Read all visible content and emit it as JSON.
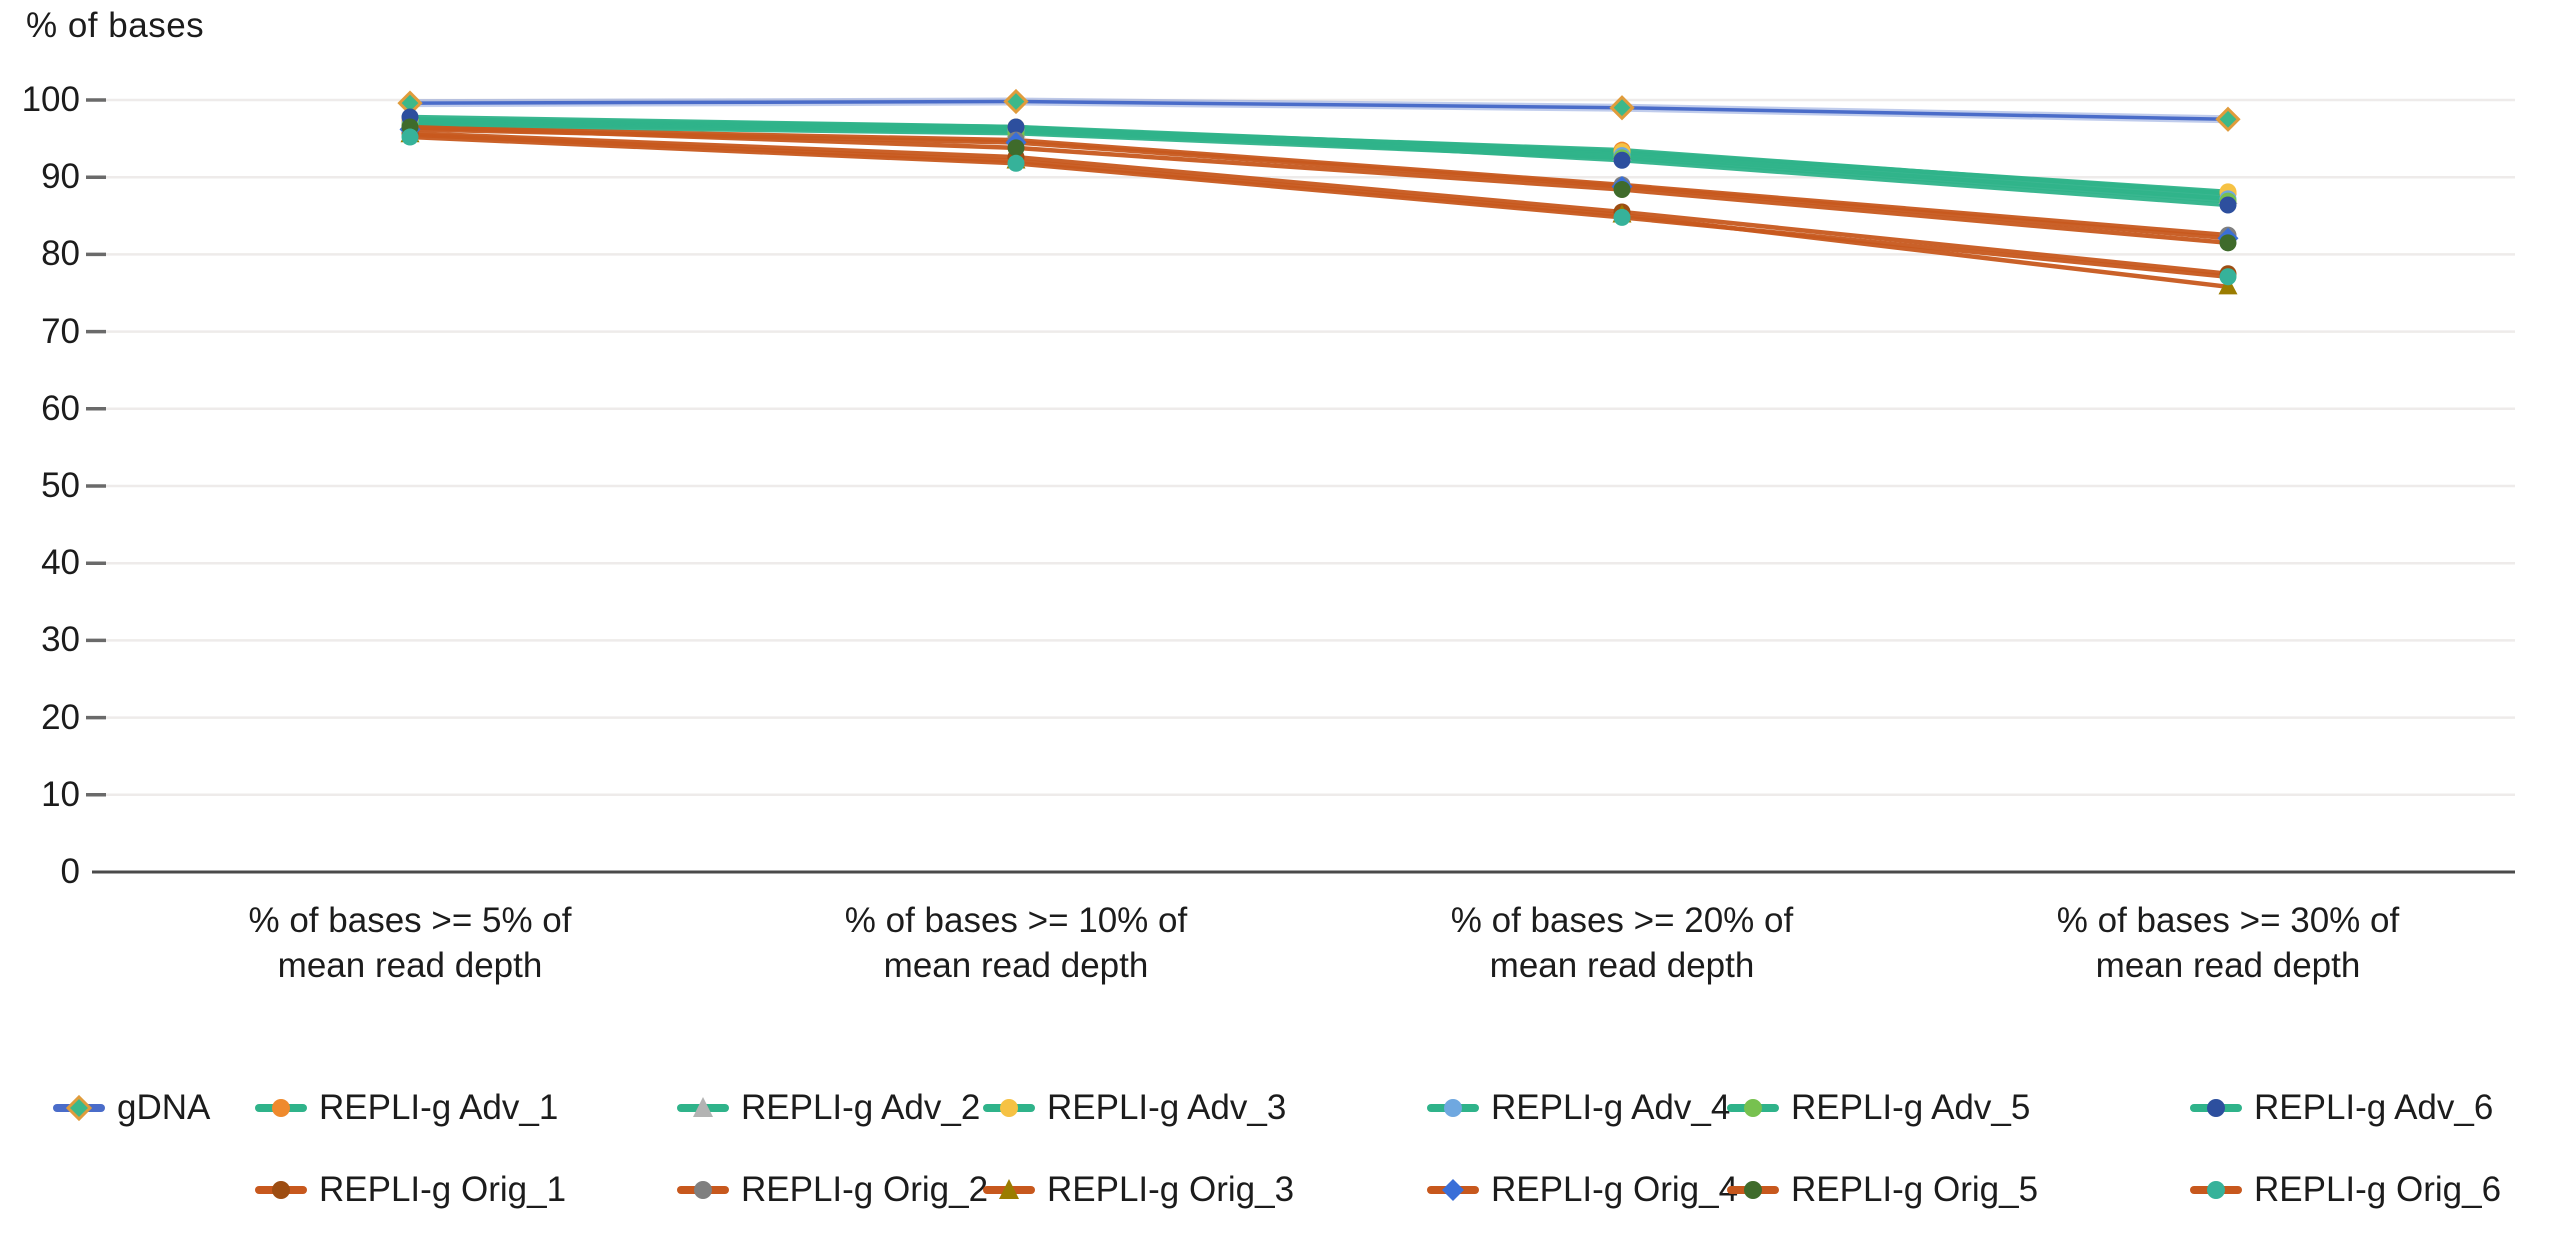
{
  "chart_data": {
    "type": "line",
    "title": "% of bases",
    "xlabel": "",
    "ylabel": "% of bases",
    "ylim": [
      0,
      100
    ],
    "yticks": [
      0,
      10,
      20,
      30,
      40,
      50,
      60,
      70,
      80,
      90,
      100
    ],
    "grid": true,
    "legend_position": "bottom",
    "categories": [
      {
        "line1": "% of bases >= 5% of",
        "line2": "mean read depth"
      },
      {
        "line1": "% of bases >= 10% of",
        "line2": "mean read depth"
      },
      {
        "line1": "% of bases >= 20% of",
        "line2": "mean read depth"
      },
      {
        "line1": "% of bases >= 30% of",
        "line2": "mean read depth"
      }
    ],
    "group_line_colors": {
      "gdna": "#4a6cc9",
      "adv": "#2fb38a",
      "orig": "#c7581d"
    },
    "series": [
      {
        "name": "gDNA",
        "group": "gdna",
        "marker": "diamond",
        "marker_color": "#3cb88a",
        "marker_outline": "#e09c3c",
        "values": [
          99.6,
          99.8,
          99.0,
          97.5
        ]
      },
      {
        "name": "REPLI-g Adv_1",
        "group": "adv",
        "marker": "circle",
        "marker_color": "#ef8a2d",
        "values": [
          97.3,
          96.3,
          93.5,
          87.9
        ]
      },
      {
        "name": "REPLI-g Adv_2",
        "group": "adv",
        "marker": "triangle",
        "marker_color": "#b3b3b3",
        "values": [
          97.1,
          96.1,
          93.1,
          87.5
        ]
      },
      {
        "name": "REPLI-g Adv_3",
        "group": "adv",
        "marker": "circle",
        "marker_color": "#f6c244",
        "values": [
          97.5,
          96.5,
          93.3,
          88.1
        ]
      },
      {
        "name": "REPLI-g Adv_4",
        "group": "adv",
        "marker": "circle",
        "marker_color": "#6fa8e0",
        "values": [
          96.9,
          95.9,
          92.8,
          87.2
        ]
      },
      {
        "name": "REPLI-g Adv_5",
        "group": "adv",
        "marker": "circle",
        "marker_color": "#77c14f",
        "values": [
          96.7,
          95.7,
          92.5,
          86.9
        ]
      },
      {
        "name": "REPLI-g Adv_6",
        "group": "adv",
        "marker": "circle",
        "marker_color": "#2d4f9e",
        "values": [
          97.8,
          96.5,
          92.2,
          86.4
        ]
      },
      {
        "name": "REPLI-g Orig_1",
        "group": "orig",
        "marker": "circle",
        "marker_color": "#9d4d12",
        "values": [
          95.7,
          92.6,
          85.5,
          77.5
        ]
      },
      {
        "name": "REPLI-g Orig_2",
        "group": "orig",
        "marker": "circle",
        "marker_color": "#7f7f7f",
        "values": [
          96.4,
          94.8,
          89.0,
          82.5
        ]
      },
      {
        "name": "REPLI-g Orig_3",
        "group": "orig",
        "marker": "triangle",
        "marker_color": "#9b7c00",
        "values": [
          95.5,
          92.1,
          85.1,
          75.8
        ]
      },
      {
        "name": "REPLI-g Orig_4",
        "group": "orig",
        "marker": "diamond",
        "marker_color": "#3a6fd8",
        "values": [
          96.2,
          94.5,
          88.8,
          82.1
        ]
      },
      {
        "name": "REPLI-g Orig_5",
        "group": "orig",
        "marker": "circle",
        "marker_color": "#3f6b2b",
        "values": [
          96.5,
          93.8,
          88.4,
          81.5
        ]
      },
      {
        "name": "REPLI-g Orig_6",
        "group": "orig",
        "marker": "circle",
        "marker_color": "#36b29a",
        "values": [
          95.2,
          91.8,
          84.8,
          77.1
        ]
      }
    ]
  }
}
